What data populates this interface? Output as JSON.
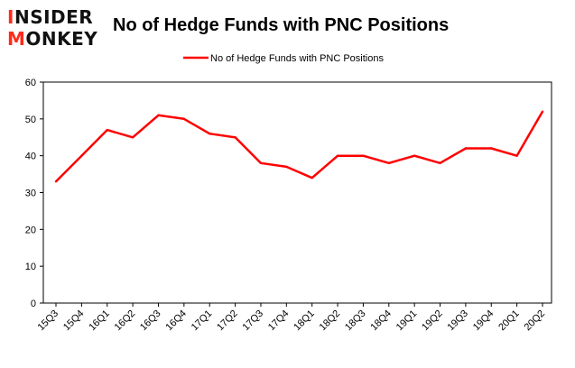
{
  "logo": {
    "line1": "INSIDER",
    "line2": "MONKEY",
    "accent_color": "#ff2a1a"
  },
  "chart_data": {
    "type": "line",
    "title": "No of Hedge Funds with PNC Positions",
    "xlabel": "",
    "ylabel": "",
    "categories": [
      "15Q3",
      "15Q4",
      "16Q1",
      "16Q2",
      "16Q3",
      "16Q4",
      "17Q1",
      "17Q2",
      "17Q3",
      "17Q4",
      "18Q1",
      "18Q2",
      "18Q3",
      "18Q4",
      "19Q1",
      "19Q2",
      "19Q3",
      "19Q4",
      "20Q1",
      "20Q2"
    ],
    "series": [
      {
        "name": "No of Hedge Funds with PNC Positions",
        "color": "#ff0000",
        "values": [
          33,
          40,
          47,
          45,
          51,
          50,
          46,
          45,
          38,
          37,
          34,
          40,
          40,
          38,
          40,
          38,
          42,
          42,
          40,
          52
        ]
      }
    ],
    "ylim": [
      0,
      60
    ],
    "yticks": [
      0,
      10,
      20,
      30,
      40,
      50,
      60
    ],
    "grid": false,
    "legend_position": "top-center"
  }
}
